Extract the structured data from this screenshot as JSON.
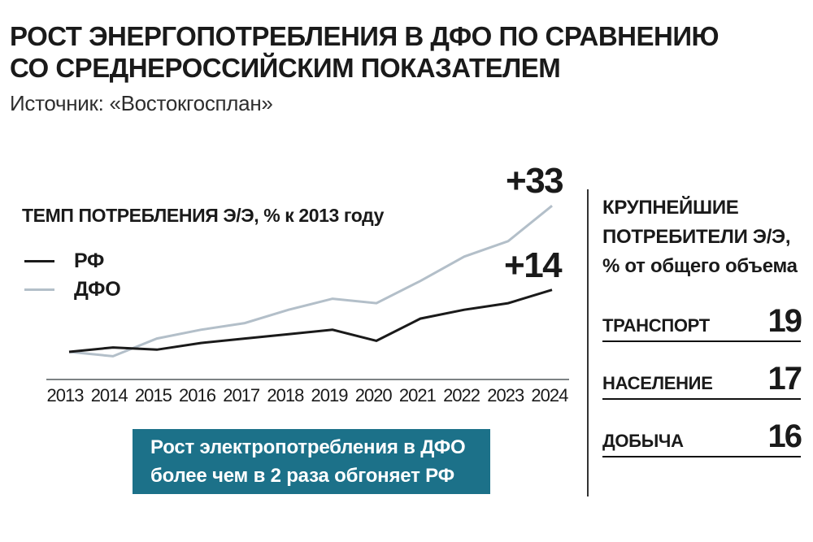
{
  "header": {
    "title_line1": "РОСТ ЭНЕРГОПОТРЕБЛЕНИЯ В ДФО ПО СРАВНЕНИЮ",
    "title_line2": "СО СРЕДНЕРОССИЙСКИМ ПОКАЗАТЕЛЕМ",
    "source": "Источник: «Востокгосплан»"
  },
  "chart_data": {
    "type": "line",
    "title": "ТЕМП ПОТРЕБЛЕНИЯ Э/Э, % к 2013 году",
    "categories": [
      "2013",
      "2014",
      "2015",
      "2016",
      "2017",
      "2018",
      "2019",
      "2020",
      "2021",
      "2022",
      "2023",
      "2024"
    ],
    "series": [
      {
        "name": "РФ",
        "color": "#1a1a1a",
        "end_label": "+14",
        "values": [
          0,
          1,
          0.5,
          2,
          3,
          4,
          5,
          2.5,
          7.5,
          9.5,
          11,
          14
        ]
      },
      {
        "name": "ДФО",
        "color": "#b3bfc9",
        "end_label": "+33",
        "values": [
          0,
          -1,
          3,
          5,
          6.5,
          9.5,
          12,
          11,
          16,
          21.5,
          25,
          33
        ]
      }
    ],
    "ylim": [
      -2,
      35
    ],
    "grid": false,
    "legend_position": "top-left",
    "axis_color": "#7d8284"
  },
  "side_panel": {
    "heading_line1": "КРУПНЕЙШИЕ",
    "heading_line2": "ПОТРЕБИТЕЛИ Э/Э,",
    "heading_line3": "% от общего объема",
    "consumers": [
      {
        "label": "ТРАНСПОРТ",
        "value": "19"
      },
      {
        "label": "НАСЕЛЕНИЕ",
        "value": "17"
      },
      {
        "label": "ДОБЫЧА",
        "value": "16"
      }
    ]
  },
  "callout": {
    "line1": "Рост электропотребления в ДФО",
    "line2": "более чем в 2 раза обгоняет РФ",
    "background": "#1c7189",
    "text_color": "#ffffff"
  },
  "colors": {
    "divider": "#333333"
  }
}
